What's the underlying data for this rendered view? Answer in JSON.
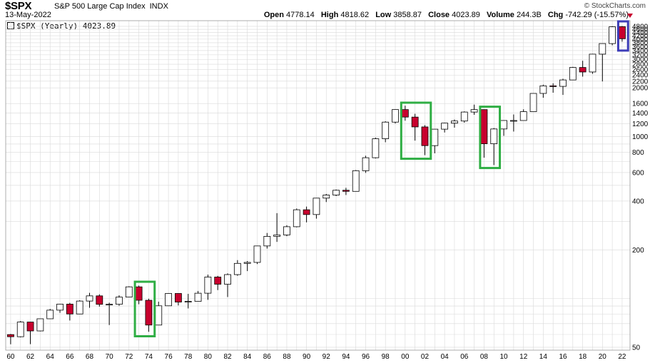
{
  "header": {
    "symbol": "$SPX",
    "name": "S&P 500 Large Cap Index",
    "exchange": "INDX",
    "date": "13-May-2022",
    "credit": "© StockCharts.com",
    "open_label": "Open",
    "open": "4778.14",
    "high_label": "High",
    "high": "4818.62",
    "low_label": "Low",
    "low": "3858.87",
    "close_label": "Close",
    "close": "4023.89",
    "volume_label": "Volume",
    "volume": "244.3B",
    "chg_label": "Chg",
    "chg": "-742.29 (-15.57%)"
  },
  "legend": "$SPX (Yearly) 4023.89",
  "colors": {
    "up": "#ffffff",
    "down": "#c8002e",
    "grid": "#d9d9d9",
    "highlight_green": "#2fae44",
    "highlight_blue": "#3d3db8"
  },
  "chart_data": {
    "type": "candlestick",
    "title": "$SPX (Yearly)",
    "yscale": "log",
    "ylim": [
      48,
      5200
    ],
    "xlim": [
      1959.5,
      2022.8
    ],
    "x_tick_labels": [
      "60",
      "62",
      "64",
      "66",
      "68",
      "70",
      "72",
      "74",
      "76",
      "78",
      "80",
      "82",
      "84",
      "86",
      "88",
      "90",
      "92",
      "94",
      "96",
      "98",
      "00",
      "02",
      "04",
      "06",
      "08",
      "10",
      "12",
      "14",
      "16",
      "18",
      "20",
      "22"
    ],
    "y_tick_values": [
      50,
      200,
      400,
      600,
      800,
      1000,
      1200,
      1400,
      1600,
      2000,
      2200,
      2400,
      2600,
      2800,
      3000,
      3200,
      3400,
      3600,
      3800,
      4000,
      4200,
      4400,
      4600,
      4800
    ],
    "y_tick_labels": [
      "50",
      "200",
      "400",
      "600",
      "800",
      "1000",
      "1200",
      "1400",
      "1600",
      "2000",
      "2200",
      "2400",
      "2600",
      "2800",
      "3000",
      "3200",
      "3400",
      "3600",
      "3800",
      "4000",
      "4200",
      "4400",
      "4600",
      "4800"
    ],
    "series": [
      {
        "values": [
          {
            "year": 1960,
            "o": 59.9,
            "h": 60.4,
            "l": 52.2,
            "c": 58.1
          },
          {
            "year": 1961,
            "o": 58.1,
            "h": 72.6,
            "l": 57.6,
            "c": 71.6
          },
          {
            "year": 1962,
            "o": 71.6,
            "h": 71.1,
            "l": 52.3,
            "c": 63.1
          },
          {
            "year": 1963,
            "o": 63.1,
            "h": 75.0,
            "l": 62.7,
            "c": 75.0
          },
          {
            "year": 1964,
            "o": 75.0,
            "h": 86.3,
            "l": 75.0,
            "c": 84.8
          },
          {
            "year": 1965,
            "o": 84.8,
            "h": 92.6,
            "l": 81.6,
            "c": 92.4
          },
          {
            "year": 1966,
            "o": 92.4,
            "h": 94.1,
            "l": 73.2,
            "c": 80.3
          },
          {
            "year": 1967,
            "o": 80.3,
            "h": 97.6,
            "l": 80.3,
            "c": 96.5
          },
          {
            "year": 1968,
            "o": 96.5,
            "h": 108.4,
            "l": 87.7,
            "c": 103.9
          },
          {
            "year": 1969,
            "o": 103.9,
            "h": 106.2,
            "l": 89.2,
            "c": 92.1
          },
          {
            "year": 1970,
            "o": 92.1,
            "h": 94.3,
            "l": 68.6,
            "c": 92.2
          },
          {
            "year": 1971,
            "o": 92.2,
            "h": 104.8,
            "l": 90.2,
            "c": 102.1
          },
          {
            "year": 1972,
            "o": 102.1,
            "h": 119.1,
            "l": 101.7,
            "c": 118.1
          },
          {
            "year": 1973,
            "o": 118.1,
            "h": 120.2,
            "l": 92.2,
            "c": 97.6
          },
          {
            "year": 1974,
            "o": 97.6,
            "h": 99.8,
            "l": 62.3,
            "c": 68.6
          },
          {
            "year": 1975,
            "o": 68.6,
            "h": 95.6,
            "l": 70.0,
            "c": 90.2
          },
          {
            "year": 1976,
            "o": 90.2,
            "h": 107.8,
            "l": 90.9,
            "c": 107.5
          },
          {
            "year": 1977,
            "o": 107.5,
            "h": 107.0,
            "l": 90.7,
            "c": 95.1
          },
          {
            "year": 1978,
            "o": 95.1,
            "h": 106.9,
            "l": 86.9,
            "c": 96.1
          },
          {
            "year": 1979,
            "o": 96.1,
            "h": 111.3,
            "l": 96.1,
            "c": 107.9
          },
          {
            "year": 1980,
            "o": 107.9,
            "h": 140.5,
            "l": 98.2,
            "c": 135.8
          },
          {
            "year": 1981,
            "o": 135.8,
            "h": 138.1,
            "l": 112.8,
            "c": 122.6
          },
          {
            "year": 1982,
            "o": 122.6,
            "h": 143.0,
            "l": 102.2,
            "c": 140.6
          },
          {
            "year": 1983,
            "o": 140.6,
            "h": 172.7,
            "l": 138.3,
            "c": 164.9
          },
          {
            "year": 1984,
            "o": 164.9,
            "h": 170.4,
            "l": 147.8,
            "c": 167.2
          },
          {
            "year": 1985,
            "o": 167.2,
            "h": 212.0,
            "l": 163.4,
            "c": 211.3
          },
          {
            "year": 1986,
            "o": 211.3,
            "h": 254.0,
            "l": 203.5,
            "c": 242.2
          },
          {
            "year": 1987,
            "o": 242.2,
            "h": 336.8,
            "l": 223.9,
            "c": 247.1
          },
          {
            "year": 1988,
            "o": 247.1,
            "h": 283.7,
            "l": 242.6,
            "c": 277.7
          },
          {
            "year": 1989,
            "o": 277.7,
            "h": 359.8,
            "l": 275.3,
            "c": 353.4
          },
          {
            "year": 1990,
            "o": 353.4,
            "h": 369.8,
            "l": 295.5,
            "c": 330.2
          },
          {
            "year": 1991,
            "o": 330.2,
            "h": 417.1,
            "l": 311.5,
            "c": 417.1
          },
          {
            "year": 1992,
            "o": 417.1,
            "h": 442.7,
            "l": 394.5,
            "c": 435.7
          },
          {
            "year": 1993,
            "o": 435.7,
            "h": 471.3,
            "l": 429.1,
            "c": 466.5
          },
          {
            "year": 1994,
            "o": 466.5,
            "h": 482.9,
            "l": 435.9,
            "c": 459.3
          },
          {
            "year": 1995,
            "o": 459.3,
            "h": 621.7,
            "l": 459.1,
            "c": 615.9
          },
          {
            "year": 1996,
            "o": 615.9,
            "h": 762.1,
            "l": 597.3,
            "c": 740.7
          },
          {
            "year": 1997,
            "o": 740.7,
            "h": 986.3,
            "l": 733.5,
            "c": 970.4
          },
          {
            "year": 1998,
            "o": 970.4,
            "h": 1244.9,
            "l": 923.3,
            "c": 1229.2
          },
          {
            "year": 1999,
            "o": 1229.2,
            "h": 1473.1,
            "l": 1205.5,
            "c": 1469.3
          },
          {
            "year": 2000,
            "o": 1469.3,
            "h": 1553.1,
            "l": 1254.1,
            "c": 1320.3
          },
          {
            "year": 2001,
            "o": 1320.3,
            "h": 1383.4,
            "l": 944.8,
            "c": 1148.1
          },
          {
            "year": 2002,
            "o": 1148.1,
            "h": 1176.9,
            "l": 768.6,
            "c": 879.8
          },
          {
            "year": 2003,
            "o": 879.8,
            "h": 1112.6,
            "l": 788.9,
            "c": 1111.9
          },
          {
            "year": 2004,
            "o": 1111.9,
            "h": 1217.3,
            "l": 1060.7,
            "c": 1211.9
          },
          {
            "year": 2005,
            "o": 1211.9,
            "h": 1275.8,
            "l": 1136.2,
            "c": 1248.3
          },
          {
            "year": 2006,
            "o": 1248.3,
            "h": 1431.8,
            "l": 1219.3,
            "c": 1418.3
          },
          {
            "year": 2007,
            "o": 1418.3,
            "h": 1576.1,
            "l": 1363.9,
            "c": 1468.4
          },
          {
            "year": 2008,
            "o": 1468.4,
            "h": 1471.8,
            "l": 741.0,
            "c": 903.3
          },
          {
            "year": 2009,
            "o": 903.3,
            "h": 1130.4,
            "l": 666.8,
            "c": 1115.1
          },
          {
            "year": 2010,
            "o": 1115.1,
            "h": 1262.6,
            "l": 1010.9,
            "c": 1257.6
          },
          {
            "year": 2011,
            "o": 1257.6,
            "h": 1370.6,
            "l": 1074.8,
            "c": 1257.6
          },
          {
            "year": 2012,
            "o": 1257.6,
            "h": 1474.5,
            "l": 1258.9,
            "c": 1426.2
          },
          {
            "year": 2013,
            "o": 1426.2,
            "h": 1849.4,
            "l": 1426.2,
            "c": 1848.4
          },
          {
            "year": 2014,
            "o": 1848.4,
            "h": 2093.6,
            "l": 1737.9,
            "c": 2058.9
          },
          {
            "year": 2015,
            "o": 2058.9,
            "h": 2134.7,
            "l": 1867.0,
            "c": 2043.9
          },
          {
            "year": 2016,
            "o": 2043.9,
            "h": 2277.5,
            "l": 1810.1,
            "c": 2238.8
          },
          {
            "year": 2017,
            "o": 2238.8,
            "h": 2694.9,
            "l": 2245.1,
            "c": 2673.6
          },
          {
            "year": 2018,
            "o": 2673.6,
            "h": 2940.9,
            "l": 2346.6,
            "c": 2506.9
          },
          {
            "year": 2019,
            "o": 2506.9,
            "h": 3247.9,
            "l": 2443.9,
            "c": 3230.8
          },
          {
            "year": 2020,
            "o": 3230.8,
            "h": 3760.2,
            "l": 2191.9,
            "c": 3756.1
          },
          {
            "year": 2021,
            "o": 3756.1,
            "h": 4808.9,
            "l": 3662.7,
            "c": 4766.2
          },
          {
            "year": 2022,
            "o": 4778.1,
            "h": 4818.6,
            "l": 3858.9,
            "c": 4023.9
          }
        ]
      }
    ],
    "highlight_boxes": [
      {
        "color": "green",
        "x_start": 1972.6,
        "x_end": 1974.6,
        "y_top": 127,
        "y_bottom": 58.5
      },
      {
        "color": "green",
        "x_start": 1999.6,
        "x_end": 2002.6,
        "y_top": 1620,
        "y_bottom": 730
      },
      {
        "color": "green",
        "x_start": 2007.6,
        "x_end": 2009.6,
        "y_top": 1530,
        "y_bottom": 640
      },
      {
        "color": "blue",
        "x_start": 2021.6,
        "x_end": 2022.6,
        "y_top": 5150,
        "y_bottom": 3400
      }
    ]
  }
}
